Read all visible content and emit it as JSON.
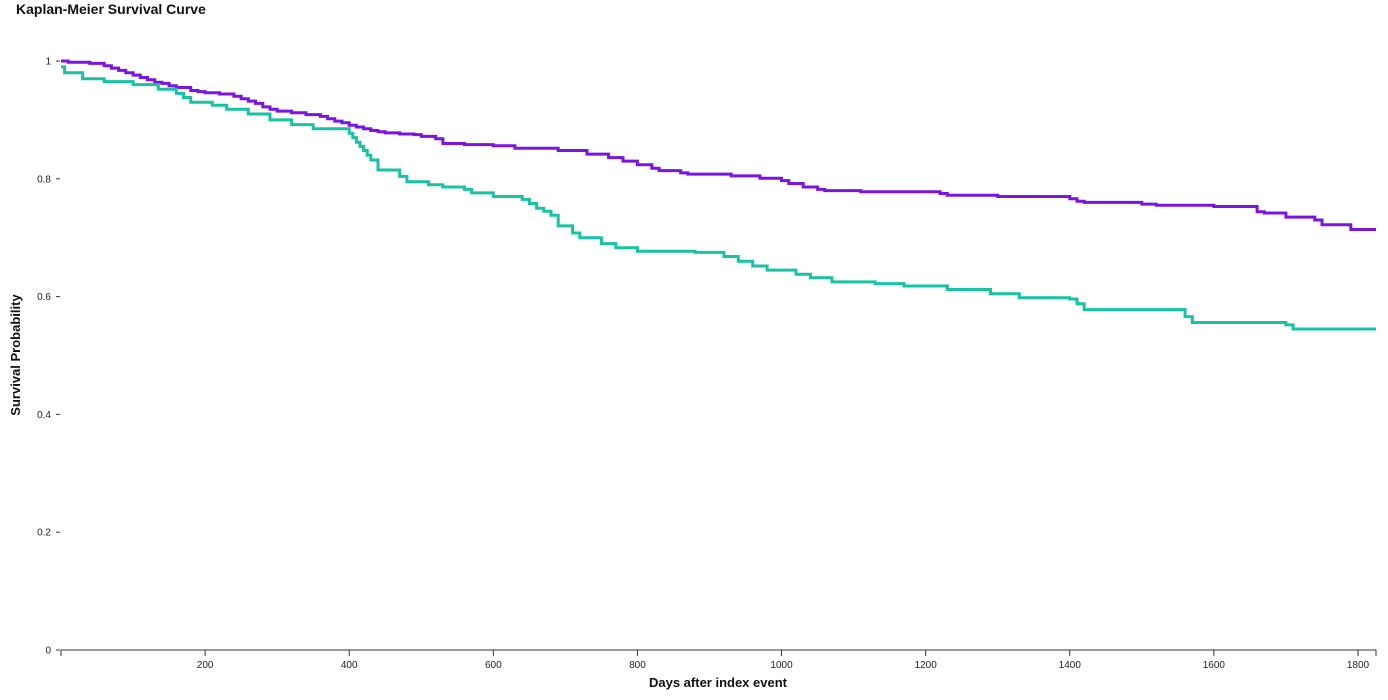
{
  "chart_data": {
    "type": "line",
    "step": true,
    "title": "Kaplan-Meier Survival Curve",
    "xlabel": "Days after index event",
    "ylabel": "Survival Probability",
    "xlim": [
      0,
      1825
    ],
    "ylim": [
      0,
      1
    ],
    "xticks": [
      200,
      400,
      600,
      800,
      1000,
      1200,
      1400,
      1600,
      1800
    ],
    "yticks": [
      0,
      0.2,
      0.4,
      0.6,
      0.8,
      1
    ],
    "ytick_labels": [
      "0",
      "0.2",
      "0.4",
      "0.6",
      "0.8",
      "1"
    ],
    "grid": false,
    "series": [
      {
        "color": "#7a14e0",
        "x": [
          0,
          10,
          40,
          60,
          70,
          80,
          90,
          100,
          110,
          120,
          130,
          140,
          150,
          160,
          180,
          190,
          200,
          220,
          240,
          250,
          260,
          270,
          280,
          290,
          300,
          320,
          340,
          360,
          370,
          380,
          390,
          400,
          410,
          420,
          430,
          440,
          450,
          460,
          470,
          490,
          500,
          520,
          530,
          560,
          600,
          630,
          690,
          730,
          760,
          780,
          800,
          820,
          830,
          860,
          870,
          930,
          970,
          1000,
          1010,
          1030,
          1050,
          1060,
          1110,
          1220,
          1230,
          1300,
          1400,
          1410,
          1420,
          1500,
          1520,
          1600,
          1660,
          1670,
          1700,
          1740,
          1750,
          1790,
          1825
        ],
        "y": [
          1.0,
          0.998,
          0.996,
          0.992,
          0.988,
          0.984,
          0.98,
          0.976,
          0.972,
          0.968,
          0.964,
          0.962,
          0.958,
          0.955,
          0.95,
          0.948,
          0.946,
          0.944,
          0.94,
          0.936,
          0.932,
          0.928,
          0.922,
          0.918,
          0.915,
          0.912,
          0.909,
          0.906,
          0.902,
          0.898,
          0.895,
          0.891,
          0.888,
          0.885,
          0.882,
          0.88,
          0.878,
          0.878,
          0.876,
          0.875,
          0.872,
          0.868,
          0.86,
          0.858,
          0.856,
          0.852,
          0.848,
          0.842,
          0.836,
          0.83,
          0.824,
          0.818,
          0.814,
          0.81,
          0.808,
          0.805,
          0.801,
          0.797,
          0.792,
          0.786,
          0.782,
          0.78,
          0.778,
          0.775,
          0.772,
          0.77,
          0.766,
          0.762,
          0.76,
          0.757,
          0.755,
          0.753,
          0.744,
          0.742,
          0.735,
          0.73,
          0.722,
          0.714,
          0.714
        ]
      },
      {
        "color": "#17c3a3",
        "x": [
          0,
          5,
          30,
          60,
          100,
          135,
          160,
          170,
          180,
          210,
          230,
          260,
          290,
          320,
          350,
          400,
          405,
          410,
          415,
          420,
          425,
          430,
          440,
          470,
          480,
          510,
          530,
          560,
          570,
          600,
          640,
          650,
          660,
          670,
          680,
          690,
          710,
          720,
          750,
          770,
          800,
          880,
          920,
          940,
          960,
          980,
          1020,
          1040,
          1070,
          1130,
          1170,
          1230,
          1290,
          1330,
          1400,
          1410,
          1420,
          1490,
          1555,
          1560,
          1570,
          1700,
          1710,
          1825
        ],
        "y": [
          0.99,
          0.98,
          0.97,
          0.965,
          0.96,
          0.952,
          0.945,
          0.938,
          0.93,
          0.925,
          0.918,
          0.91,
          0.9,
          0.892,
          0.885,
          0.877,
          0.87,
          0.862,
          0.855,
          0.848,
          0.84,
          0.832,
          0.815,
          0.804,
          0.795,
          0.79,
          0.786,
          0.782,
          0.776,
          0.77,
          0.765,
          0.758,
          0.75,
          0.745,
          0.738,
          0.72,
          0.708,
          0.7,
          0.69,
          0.683,
          0.677,
          0.675,
          0.668,
          0.66,
          0.652,
          0.645,
          0.638,
          0.632,
          0.625,
          0.622,
          0.618,
          0.612,
          0.605,
          0.598,
          0.596,
          0.588,
          0.578,
          0.578,
          0.578,
          0.566,
          0.556,
          0.552,
          0.545,
          0.545
        ]
      }
    ]
  }
}
